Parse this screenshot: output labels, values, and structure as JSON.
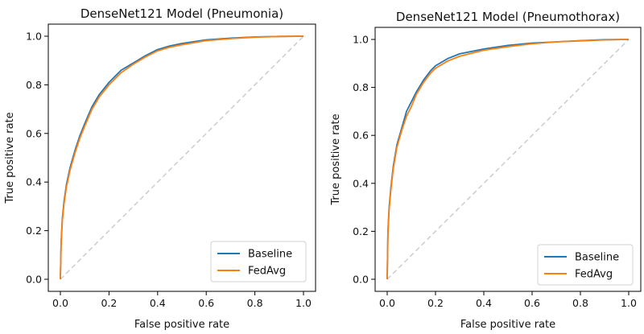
{
  "chart_data": [
    {
      "type": "line",
      "title": "DenseNet121 Model (Pneumonia)",
      "xlabel": "False positive rate",
      "ylabel": "True positive rate",
      "xlim": [
        0,
        1
      ],
      "ylim": [
        0,
        1
      ],
      "xticks": [
        "0.0",
        "0.2",
        "0.4",
        "0.6",
        "0.8",
        "1.0"
      ],
      "yticks": [
        "0.0",
        "0.2",
        "0.4",
        "0.6",
        "0.8",
        "1.0"
      ],
      "grid": false,
      "legend_position": "bottom-right",
      "reference_line": {
        "x": [
          0,
          1
        ],
        "y": [
          0,
          1
        ],
        "style": "dashed",
        "color": "#cccccc"
      },
      "series": [
        {
          "name": "Baseline",
          "color": "#1f77b4",
          "x": [
            0,
            0.003,
            0.008,
            0.015,
            0.025,
            0.04,
            0.06,
            0.08,
            0.1,
            0.13,
            0.16,
            0.2,
            0.25,
            0.3,
            0.35,
            0.4,
            0.45,
            0.5,
            0.6,
            0.7,
            0.8,
            0.9,
            1.0
          ],
          "y": [
            0,
            0.15,
            0.25,
            0.32,
            0.39,
            0.46,
            0.53,
            0.59,
            0.64,
            0.71,
            0.76,
            0.81,
            0.86,
            0.89,
            0.92,
            0.945,
            0.96,
            0.97,
            0.985,
            0.992,
            0.997,
            0.999,
            1.0
          ]
        },
        {
          "name": "FedAvg",
          "color": "#ff7f0e",
          "x": [
            0,
            0.003,
            0.008,
            0.015,
            0.025,
            0.04,
            0.06,
            0.08,
            0.1,
            0.13,
            0.16,
            0.2,
            0.25,
            0.3,
            0.35,
            0.4,
            0.45,
            0.5,
            0.6,
            0.7,
            0.8,
            0.9,
            1.0
          ],
          "y": [
            0,
            0.14,
            0.24,
            0.31,
            0.38,
            0.45,
            0.52,
            0.58,
            0.63,
            0.7,
            0.75,
            0.8,
            0.85,
            0.885,
            0.915,
            0.94,
            0.955,
            0.965,
            0.982,
            0.99,
            0.996,
            0.999,
            1.0
          ]
        }
      ]
    },
    {
      "type": "line",
      "title": "DenseNet121 Model (Pneumothorax)",
      "xlabel": "False positive rate",
      "ylabel": "True positive rate",
      "xlim": [
        0,
        1
      ],
      "ylim": [
        0,
        1
      ],
      "xticks": [
        "0.0",
        "0.2",
        "0.4",
        "0.6",
        "0.8",
        "1.0"
      ],
      "yticks": [
        "0.0",
        "0.2",
        "0.4",
        "0.6",
        "0.8",
        "1.0"
      ],
      "grid": false,
      "legend_position": "bottom-right",
      "reference_line": {
        "x": [
          0,
          1
        ],
        "y": [
          0,
          1
        ],
        "style": "dashed",
        "color": "#cccccc"
      },
      "series": [
        {
          "name": "Baseline",
          "color": "#1f77b4",
          "x": [
            0,
            0.003,
            0.008,
            0.015,
            0.025,
            0.04,
            0.06,
            0.08,
            0.1,
            0.12,
            0.15,
            0.18,
            0.2,
            0.25,
            0.3,
            0.4,
            0.5,
            0.6,
            0.7,
            0.8,
            0.9,
            1.0
          ],
          "y": [
            0,
            0.2,
            0.3,
            0.38,
            0.47,
            0.56,
            0.63,
            0.7,
            0.74,
            0.78,
            0.83,
            0.87,
            0.89,
            0.92,
            0.94,
            0.96,
            0.975,
            0.985,
            0.99,
            0.995,
            0.999,
            1.0
          ]
        },
        {
          "name": "FedAvg",
          "color": "#ff7f0e",
          "x": [
            0,
            0.003,
            0.008,
            0.015,
            0.025,
            0.04,
            0.06,
            0.08,
            0.1,
            0.12,
            0.15,
            0.18,
            0.2,
            0.25,
            0.3,
            0.4,
            0.5,
            0.6,
            0.7,
            0.8,
            0.9,
            1.0
          ],
          "y": [
            0,
            0.19,
            0.29,
            0.37,
            0.46,
            0.55,
            0.62,
            0.68,
            0.72,
            0.77,
            0.82,
            0.86,
            0.88,
            0.91,
            0.93,
            0.955,
            0.97,
            0.982,
            0.99,
            0.994,
            0.998,
            1.0
          ]
        }
      ]
    }
  ]
}
